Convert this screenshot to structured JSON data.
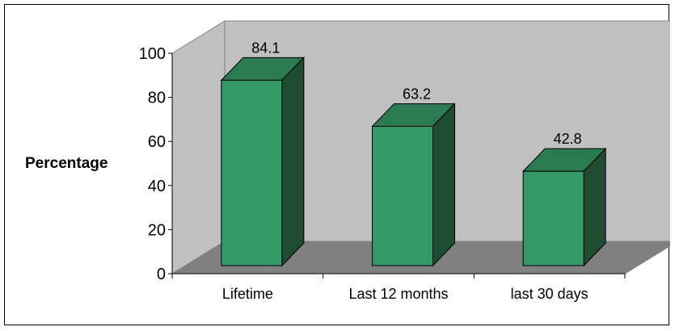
{
  "chart_data": {
    "type": "bar",
    "categories": [
      "Lifetime",
      "Last 12 months",
      "last 30 days"
    ],
    "values": [
      84.1,
      63.2,
      42.8
    ],
    "value_labels": [
      "84.1",
      "63.2",
      "42.8"
    ],
    "ylabel": "Percentage",
    "xlabel": "",
    "title": "",
    "ylim": [
      0,
      100
    ],
    "yticks": [
      "0",
      "20",
      "40",
      "60",
      "80",
      "100"
    ],
    "style": "3d-column",
    "grid": false,
    "colors": {
      "bar_front": "#339966",
      "bar_top": "#2a7a52",
      "bar_side": "#1e4d33",
      "wall": "#c0c0c0",
      "floor": "#808080",
      "border": "#000000"
    }
  }
}
